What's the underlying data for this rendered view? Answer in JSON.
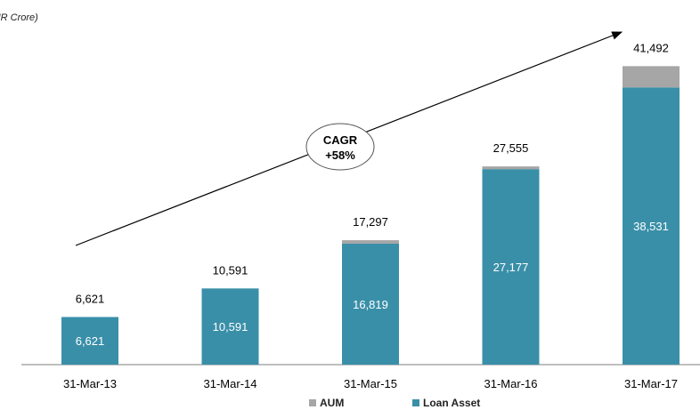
{
  "unit_label": "(INR Crore)",
  "cagr": {
    "line1": "CAGR",
    "line2": "+58%"
  },
  "colors": {
    "aum": "#A6A6A6",
    "loan_asset": "#3A8FA8",
    "axis": "#7F7F7F"
  },
  "chart_data": {
    "type": "bar",
    "stacked": true,
    "categories": [
      "31-Mar-13",
      "31-Mar-14",
      "31-Mar-15",
      "31-Mar-16",
      "31-Mar-17"
    ],
    "series": [
      {
        "name": "Loan Asset",
        "values": [
          6621,
          10591,
          16819,
          27177,
          38531
        ]
      },
      {
        "name": "AUM",
        "values": [
          0,
          0,
          478,
          378,
          2961
        ]
      }
    ],
    "totals": [
      6621,
      10591,
      17297,
      27555,
      41492
    ],
    "total_labels": [
      "6,621",
      "10,591",
      "17,297",
      "27,555",
      "41,492"
    ],
    "loan_labels": [
      "6,621",
      "10,591",
      "16,819",
      "27,177",
      "38,531"
    ],
    "legend": [
      "AUM",
      "Loan Asset"
    ],
    "legend_position": "bottom-center",
    "grid": false,
    "ylim": [
      0,
      45000
    ],
    "title": "",
    "xlabel": "",
    "ylabel": ""
  }
}
